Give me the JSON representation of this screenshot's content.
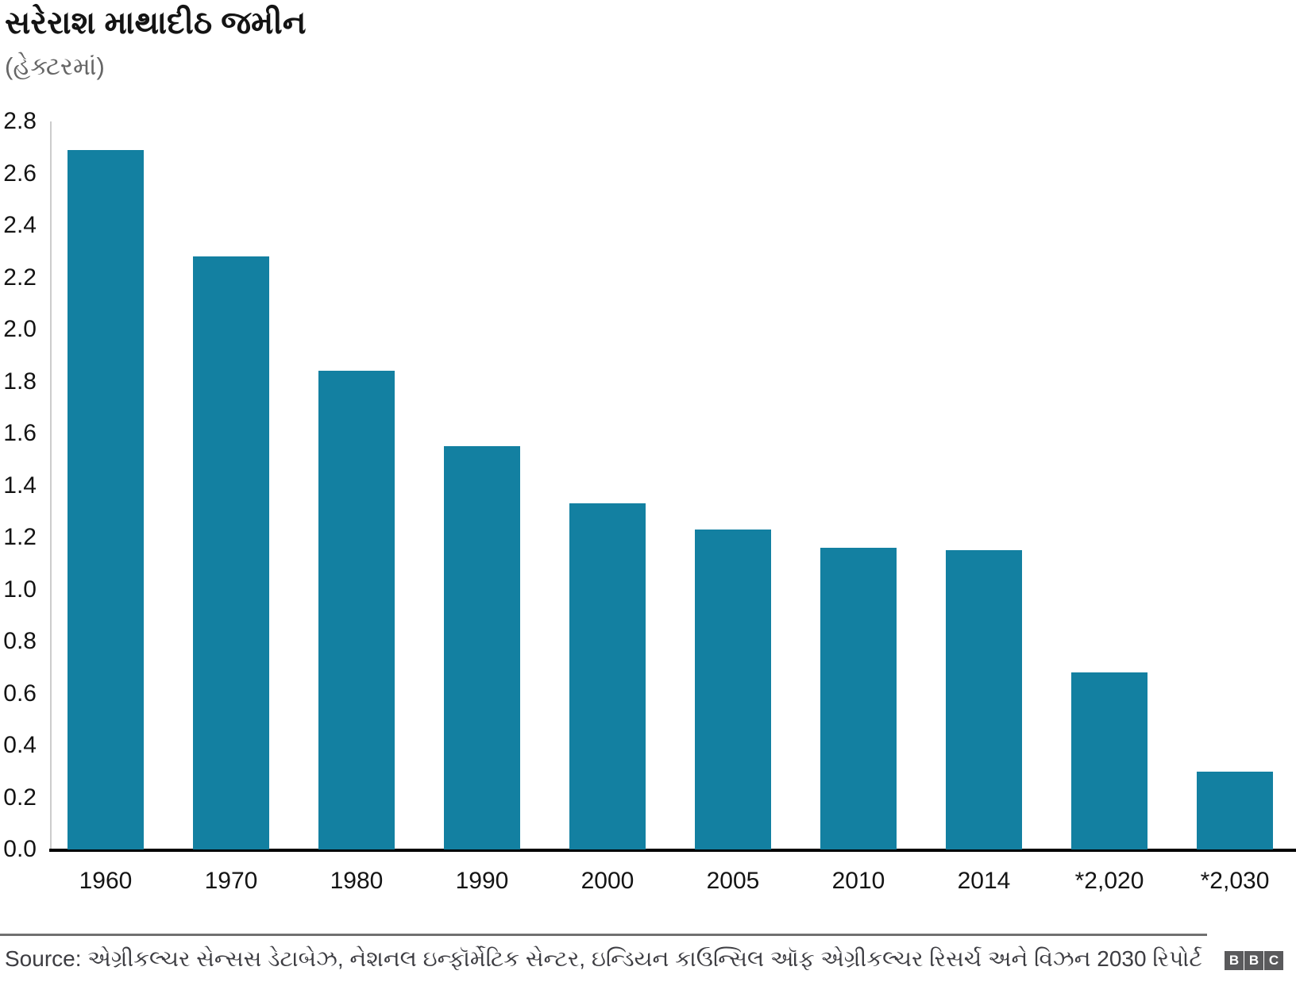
{
  "header": {
    "title": "સરેરાશ માથાદીઠ જમીન",
    "subtitle": "(હેક્ટરમાં)"
  },
  "chart_data": {
    "type": "bar",
    "title": "સરેરાશ માથાદીઠ જમીન",
    "subtitle": "(હેક્ટરમાં)",
    "categories": [
      "1960",
      "1970",
      "1980",
      "1990",
      "2000",
      "2005",
      "2010",
      "2014",
      "*2,020",
      "*2,030"
    ],
    "values": [
      2.69,
      2.28,
      1.84,
      1.55,
      1.33,
      1.23,
      1.16,
      1.15,
      0.68,
      0.3
    ],
    "xlabel": "",
    "ylabel": "",
    "ylim": [
      0,
      2.8
    ],
    "ytick_step": 0.2,
    "yticks": [
      "0.0",
      "0.2",
      "0.4",
      "0.6",
      "0.8",
      "1.0",
      "1.2",
      "1.4",
      "1.6",
      "1.8",
      "2.0",
      "2.2",
      "2.4",
      "2.6",
      "2.8"
    ],
    "grid": false,
    "legend_position": "none",
    "bar_color": "#1380A1"
  },
  "footer": {
    "source": "Source: એગ્રીકલ્ચર સેન્સસ ડેટાબેઝ, નેશનલ ઇન્ફૉર્મેટિક સેન્ટર, ઇન્ડિયન કાઉન્સિલ ઑફ એગ્રીકલ્ચર રિસર્ચ અને વિઝન 2030 રિપોર્ટ",
    "logo_letters": [
      "B",
      "B",
      "C"
    ]
  },
  "colors": {
    "bar": "#1380A1",
    "y_axis_line": "#cccccc",
    "x_axis_line": "#000000",
    "divider": "#707070",
    "title_text": "#141414",
    "subtitle_text": "#666666",
    "source_text": "#3d3d42",
    "logo_background": "#5a5a5c"
  }
}
